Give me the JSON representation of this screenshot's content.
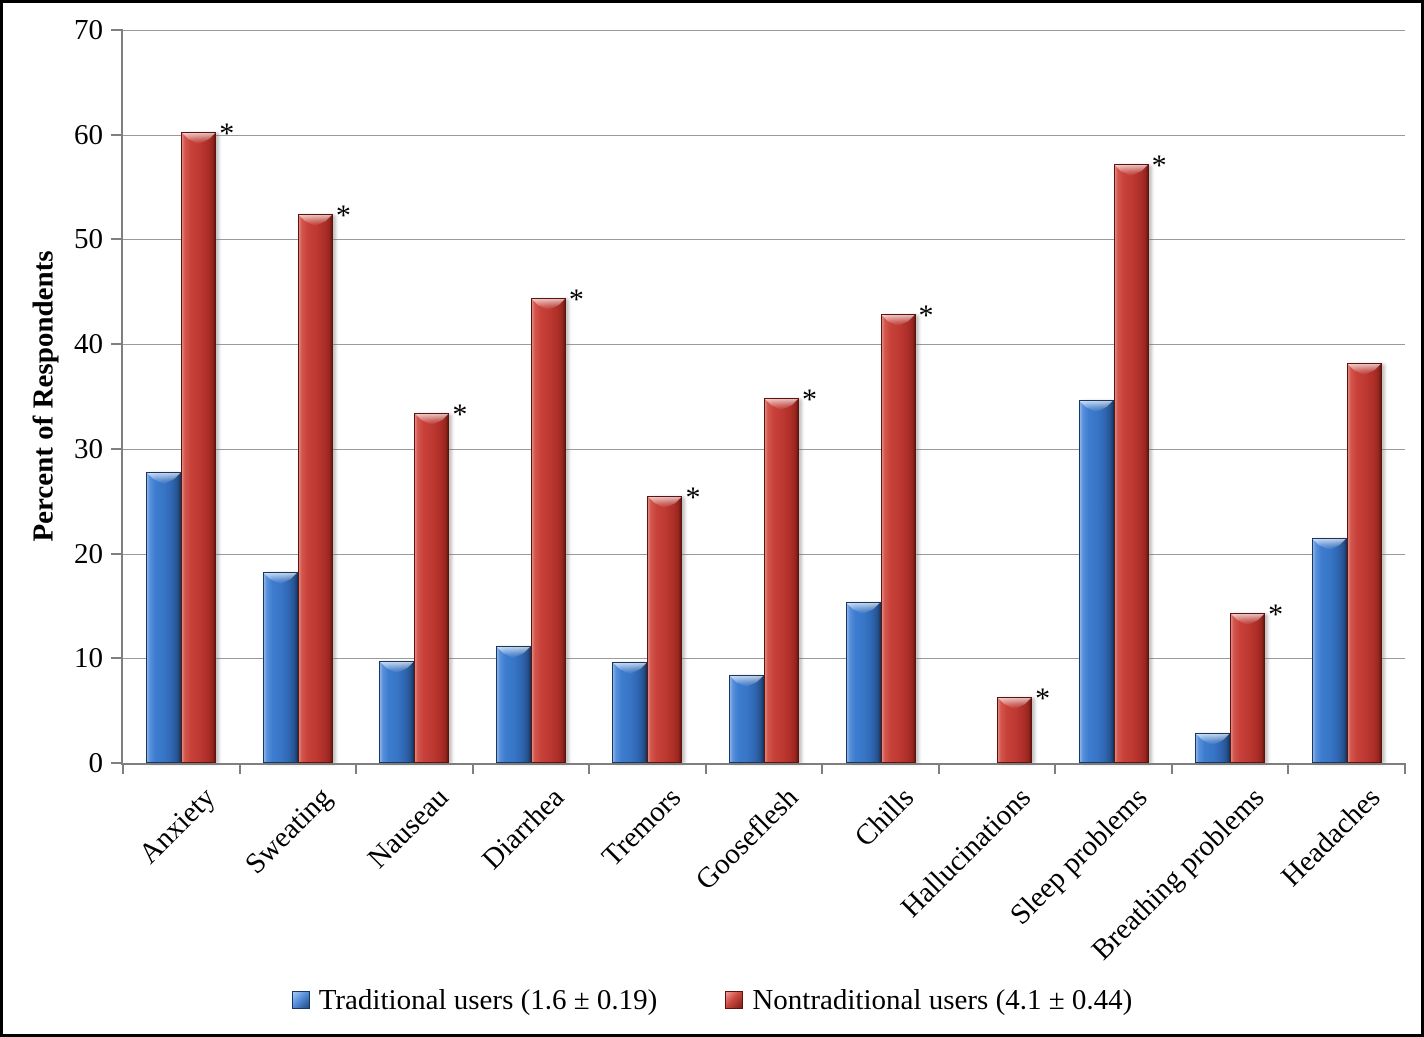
{
  "chart_data": {
    "type": "bar",
    "title": "",
    "xlabel": "",
    "ylabel": "Percent of Respondents",
    "ylim": [
      0,
      70
    ],
    "yticks": [
      0,
      10,
      20,
      30,
      40,
      50,
      60,
      70
    ],
    "grid": "horizontal",
    "legend_position": "bottom",
    "categories": [
      "Anxiety",
      "Sweating",
      "Nauseau",
      "Diarrhea",
      "Tremors",
      "Gooseflesh",
      "Chills",
      "Hallucinations",
      "Sleep problems",
      "Breathing problems",
      "Headaches"
    ],
    "series": [
      {
        "name": "Traditional users (1.6 ± 0.19)",
        "color": "#3b76c7",
        "values": [
          27.8,
          18.2,
          9.7,
          11.2,
          9.6,
          8.4,
          15.4,
          0,
          34.7,
          2.9,
          21.5
        ]
      },
      {
        "name": "Nontraditional users (4.1 ± 0.44)",
        "color": "#c43b33",
        "values": [
          60.3,
          52.4,
          33.4,
          44.4,
          25.5,
          34.9,
          42.9,
          6.3,
          57.2,
          14.3,
          38.2
        ],
        "point_labels": [
          "*",
          "*",
          "*",
          "*",
          "*",
          "*",
          "*",
          "*",
          "*",
          "*",
          ""
        ]
      }
    ]
  }
}
